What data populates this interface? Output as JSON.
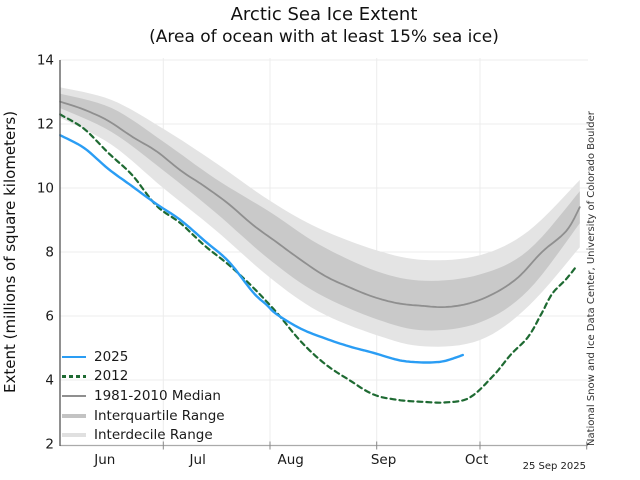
{
  "chart_data": {
    "type": "line",
    "title": "Arctic Sea Ice Extent",
    "subtitle": "(Area of ocean with at least 15% sea ice)",
    "ylabel": "Extent (millions of square kilometers)",
    "ylim": [
      2,
      14
    ],
    "yticks": [
      2,
      4,
      6,
      8,
      10,
      12,
      14
    ],
    "x_unit": "days since Jun 1",
    "xlim": [
      0,
      153
    ],
    "grid": true,
    "legend_position": "lower left",
    "months": [
      {
        "label": "Jun",
        "start_day": 0,
        "label_day": 13
      },
      {
        "label": "Jul",
        "start_day": 30,
        "label_day": 40
      },
      {
        "label": "Aug",
        "start_day": 61,
        "label_day": 67
      },
      {
        "label": "Sep",
        "start_day": 92,
        "label_day": 94
      },
      {
        "label": "Oct",
        "start_day": 122,
        "label_day": 121
      }
    ],
    "series": [
      {
        "name": "2025",
        "color": "#2a9df4",
        "style": "solid",
        "width": 2.4,
        "x": [
          0,
          7,
          14,
          21,
          28,
          35,
          42,
          49,
          56,
          60,
          63,
          70,
          77,
          84,
          91,
          98,
          103,
          108,
          112,
          117
        ],
        "y": [
          11.65,
          11.25,
          10.6,
          10.05,
          9.5,
          9.0,
          8.35,
          7.7,
          6.75,
          6.35,
          6.05,
          5.6,
          5.3,
          5.05,
          4.85,
          4.63,
          4.56,
          4.55,
          4.6,
          4.78
        ]
      },
      {
        "name": "2012",
        "color": "#1e6a32",
        "style": "dashed",
        "width": 2.2,
        "x": [
          0,
          7,
          14,
          21,
          28,
          35,
          42,
          49,
          56,
          63,
          70,
          77,
          84,
          91,
          98,
          105,
          112,
          119,
          126,
          131,
          136,
          140,
          143,
          147,
          150
        ],
        "y": [
          12.3,
          11.85,
          11.1,
          10.4,
          9.45,
          8.9,
          8.2,
          7.6,
          6.9,
          6.1,
          5.2,
          4.5,
          4.0,
          3.55,
          3.38,
          3.32,
          3.3,
          3.45,
          4.15,
          4.8,
          5.35,
          6.1,
          6.7,
          7.15,
          7.55
        ]
      },
      {
        "name": "1981-2010 Median",
        "color": "#8f8f8f",
        "style": "solid",
        "width": 1.8,
        "x": [
          0,
          7,
          14,
          21,
          28,
          35,
          42,
          49,
          56,
          63,
          70,
          77,
          84,
          91,
          98,
          105,
          112,
          119,
          126,
          133,
          140,
          147,
          151
        ],
        "y": [
          12.7,
          12.45,
          12.1,
          11.6,
          11.15,
          10.55,
          10.05,
          9.5,
          8.85,
          8.3,
          7.75,
          7.25,
          6.9,
          6.6,
          6.4,
          6.32,
          6.28,
          6.4,
          6.7,
          7.2,
          8.0,
          8.65,
          9.4
        ]
      }
    ],
    "bands": [
      {
        "name": "Interdecile Range",
        "color": "#e4e4e4",
        "x": [
          0,
          15,
          30,
          45,
          61,
          75,
          92,
          106,
          122,
          136,
          151
        ],
        "upper": [
          13.15,
          12.75,
          11.85,
          10.8,
          9.6,
          8.75,
          8.05,
          7.75,
          7.9,
          8.65,
          10.25
        ],
        "lower": [
          12.2,
          11.35,
          10.0,
          8.7,
          7.2,
          6.15,
          5.4,
          5.05,
          5.25,
          6.3,
          8.15
        ]
      },
      {
        "name": "Interquartile Range",
        "color": "#c9c9c9",
        "x": [
          0,
          15,
          30,
          45,
          61,
          75,
          92,
          106,
          122,
          136,
          151
        ],
        "upper": [
          12.95,
          12.5,
          11.45,
          10.3,
          9.25,
          8.25,
          7.4,
          7.1,
          7.3,
          8.05,
          9.9
        ],
        "lower": [
          12.5,
          11.75,
          10.55,
          9.25,
          7.75,
          6.7,
          5.9,
          5.55,
          5.8,
          6.8,
          8.9
        ]
      }
    ],
    "legend": [
      {
        "label": "2025",
        "swatch": "line",
        "color": "#2a9df4"
      },
      {
        "label": "2012",
        "swatch": "dashed-line",
        "color": "#1e6a32"
      },
      {
        "label": "1981-2010 Median",
        "swatch": "thin-line",
        "color": "#8f8f8f"
      },
      {
        "label": "Interquartile Range",
        "swatch": "band",
        "color": "#c3c3c3"
      },
      {
        "label": "Interdecile Range",
        "swatch": "band",
        "color": "#e0e0e0"
      }
    ],
    "annotations": {
      "credit": "National Snow and Ice Data Center, University of Colorado Boulder",
      "date_label": "25 Sep 2025"
    },
    "axis_colors": {
      "left_spine": "#555555",
      "bottom_spine": "#aaaaaa",
      "ticks": "#888888",
      "grid": "#ececec",
      "tick_label": "#1a1a1a"
    }
  }
}
